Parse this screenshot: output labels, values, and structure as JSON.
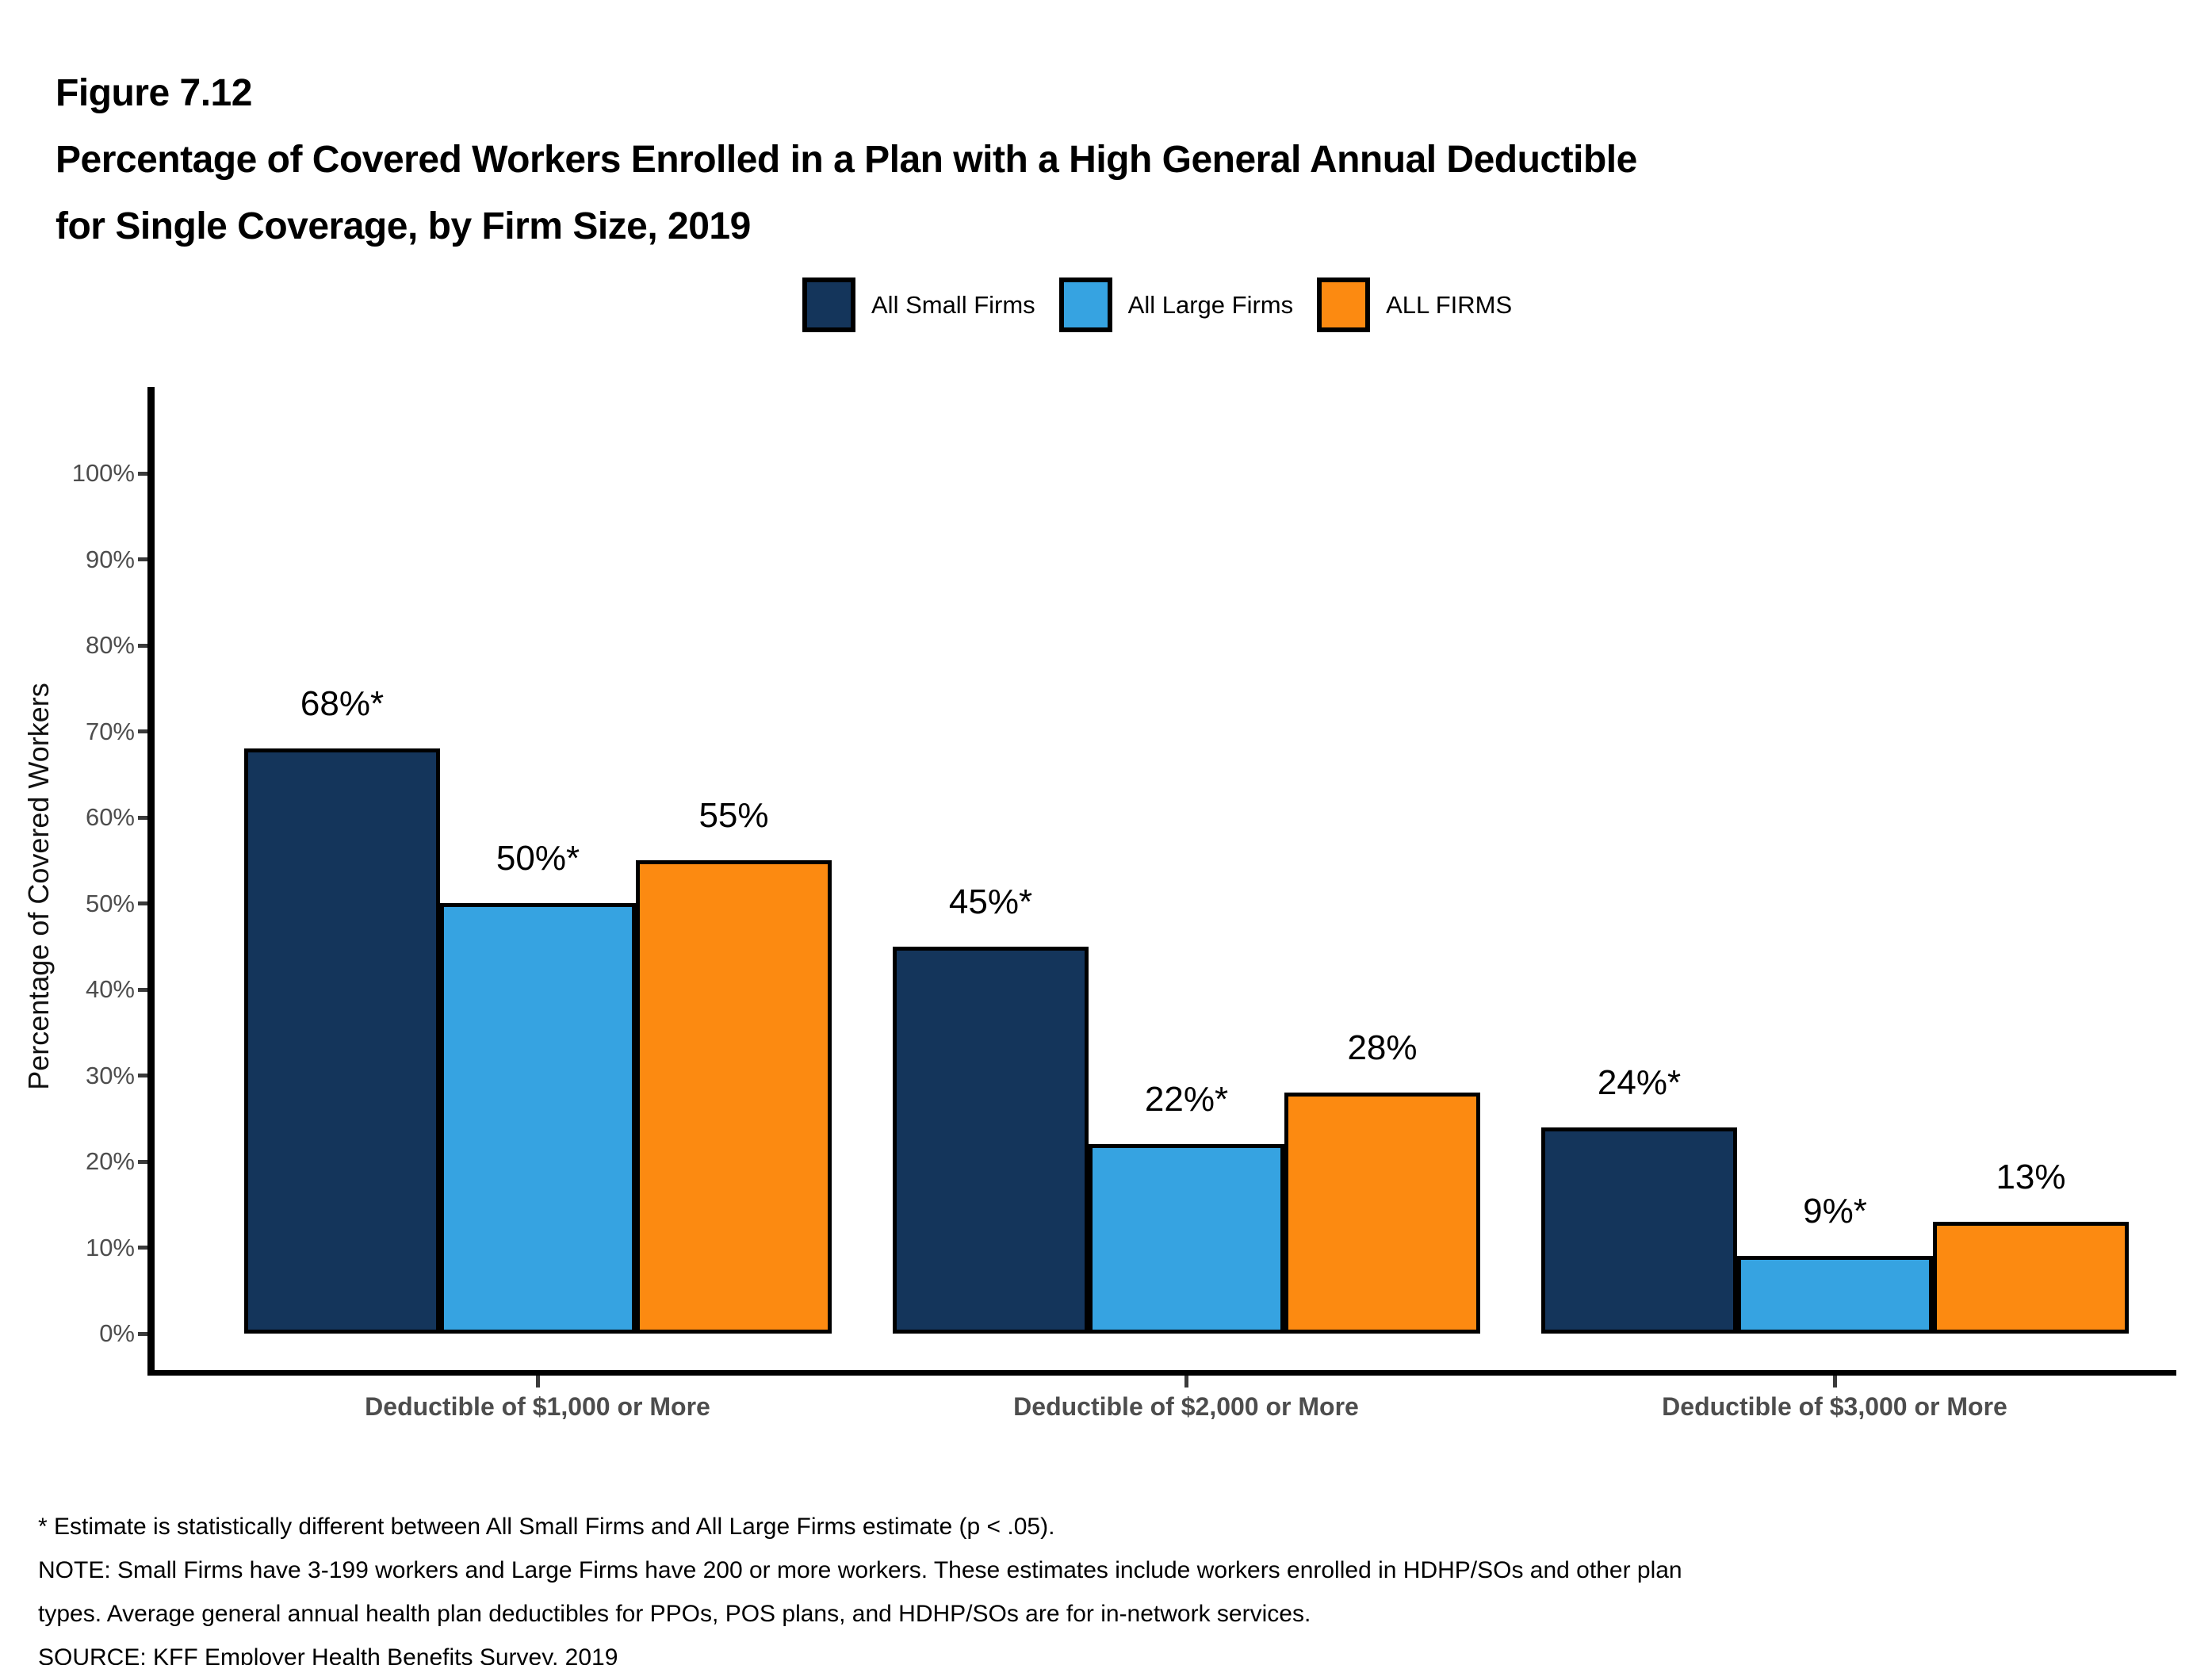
{
  "figure": {
    "number": "Figure 7.12",
    "title_line1": "Percentage of Covered Workers Enrolled in a Plan with a High General Annual Deductible",
    "title_line2": "for Single Coverage, by Firm Size, 2019"
  },
  "legend": {
    "items": [
      {
        "label": "All Small Firms",
        "color": "#14355B"
      },
      {
        "label": "All Large Firms",
        "color": "#36A3E1"
      },
      {
        "label": "ALL FIRMS",
        "color": "#FC8A11"
      }
    ]
  },
  "chart_data": {
    "type": "bar",
    "title": "Percentage of Covered Workers Enrolled in a Plan with a High General Annual Deductible for Single Coverage, by Firm Size, 2019",
    "categories": [
      "Deductible of $1,000 or More",
      "Deductible of $2,000 or More",
      "Deductible of $3,000 or More"
    ],
    "series": [
      {
        "name": "All Small Firms",
        "color": "#14355B",
        "values": [
          68,
          45,
          24
        ],
        "labels": [
          "68%*",
          "45%*",
          "24%*"
        ]
      },
      {
        "name": "All Large Firms",
        "color": "#36A3E1",
        "values": [
          50,
          22,
          9
        ],
        "labels": [
          "50%*",
          "22%*",
          "9%*"
        ]
      },
      {
        "name": "ALL FIRMS",
        "color": "#FC8A11",
        "values": [
          55,
          28,
          13
        ],
        "labels": [
          "55%",
          "28%",
          "13%"
        ]
      }
    ],
    "xlabel": "",
    "ylabel": "Percentage of Covered Workers",
    "ylim": [
      0,
      100
    ],
    "y_ticks": [
      "0%",
      "10%",
      "20%",
      "30%",
      "40%",
      "50%",
      "60%",
      "70%",
      "80%",
      "90%",
      "100%"
    ],
    "grid": false,
    "legend_position": "top"
  },
  "footnotes": {
    "line1": "* Estimate is statistically different between All Small Firms and All Large Firms estimate (p < .05).",
    "line2": "NOTE: Small Firms have 3-199 workers and Large Firms have 200 or more workers. These estimates include workers enrolled in HDHP/SOs and other plan",
    "line3": "types. Average general annual health plan deductibles for PPOs, POS plans, and HDHP/SOs are for in-network services.",
    "line4": "SOURCE: KFF Employer Health Benefits Survey, 2019"
  }
}
